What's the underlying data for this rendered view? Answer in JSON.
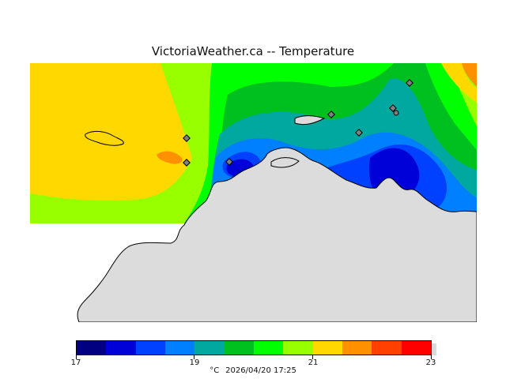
{
  "title": "VictoriaWeather.ca -- Temperature",
  "legend": {
    "colors": [
      "#000080",
      "#0000d8",
      "#0040ff",
      "#0080ff",
      "#00a8a0",
      "#00c020",
      "#00ff00",
      "#98ff00",
      "#ffd800",
      "#ff9000",
      "#ff4000",
      "#ff0000"
    ],
    "tick_labels": [
      "17",
      "19",
      "21",
      "23"
    ],
    "unit": "°C",
    "timestamp": "2026/04/20 17:25"
  },
  "map": {
    "land_color": "#dcdcdc",
    "station_color": "#808080"
  }
}
